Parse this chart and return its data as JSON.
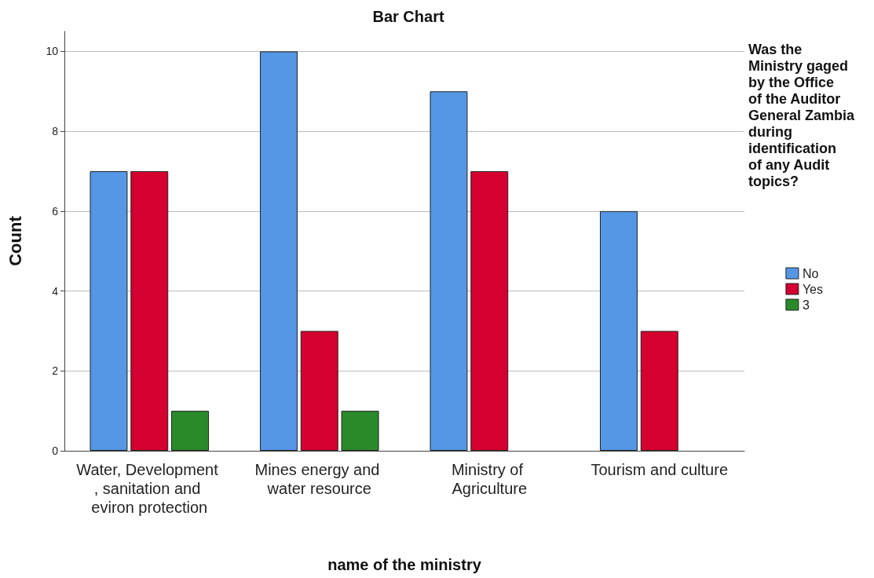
{
  "chart_data": {
    "type": "bar",
    "title": "Bar Chart",
    "xlabel": "name of the ministry",
    "ylabel": "Count",
    "legend_title": "Was the Ministry gaged by the Office of the Auditor General Zambia during identification of any Audit topics?",
    "categories": [
      "Water, Development , sanitation and eviron protection",
      "Mines energy and water resource",
      "Ministry of Agriculture",
      "Tourism and culture"
    ],
    "series": [
      {
        "name": "No",
        "color": "#5596e5",
        "values": [
          7,
          10,
          9,
          6
        ]
      },
      {
        "name": "Yes",
        "color": "#d4002f",
        "values": [
          7,
          3,
          7,
          3
        ]
      },
      {
        "name": "3",
        "color": "#2a8a2a",
        "values": [
          1,
          1,
          null,
          null
        ]
      }
    ],
    "ylim": [
      0,
      10.5
    ],
    "yticks": [
      0,
      2,
      4,
      6,
      8,
      10
    ],
    "grid": "y",
    "legend": "right"
  }
}
